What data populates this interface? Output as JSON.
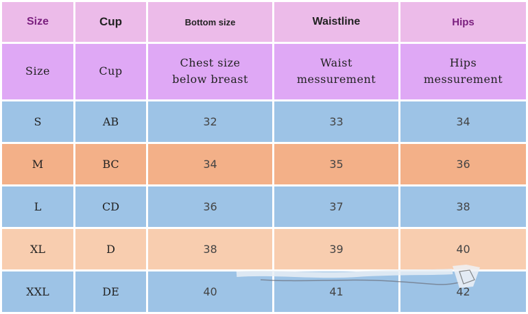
{
  "header": [
    "Size",
    "Cup",
    "Bottom size",
    "Waistline",
    "Hips"
  ],
  "subheader": [
    [
      "Size"
    ],
    [
      "Cup"
    ],
    [
      "Chest size",
      "below breast"
    ],
    [
      "Waist",
      "messurement"
    ],
    [
      "Hips",
      "messurement"
    ]
  ],
  "rows": [
    {
      "size": "S",
      "cup": "AB",
      "bottom": "32",
      "waist": "33",
      "hips": "34"
    },
    {
      "size": "M",
      "cup": "BC",
      "bottom": "34",
      "waist": "35",
      "hips": "36"
    },
    {
      "size": "L",
      "cup": "CD",
      "bottom": "36",
      "waist": "37",
      "hips": "38"
    },
    {
      "size": "XL",
      "cup": "D",
      "bottom": "38",
      "waist": "39",
      "hips": "40"
    },
    {
      "size": "XXL",
      "cup": "DE",
      "bottom": "40",
      "waist": "41",
      "hips": "42"
    }
  ],
  "colors": {
    "header_bg": "#ecbbe9",
    "subheader_bg": "#dfa8f5",
    "row_blue": "#9dc3e6",
    "row_orange": "#f3b088",
    "row_peach": "#f8cdaf",
    "header_accent_text": "#7a1f7e"
  }
}
